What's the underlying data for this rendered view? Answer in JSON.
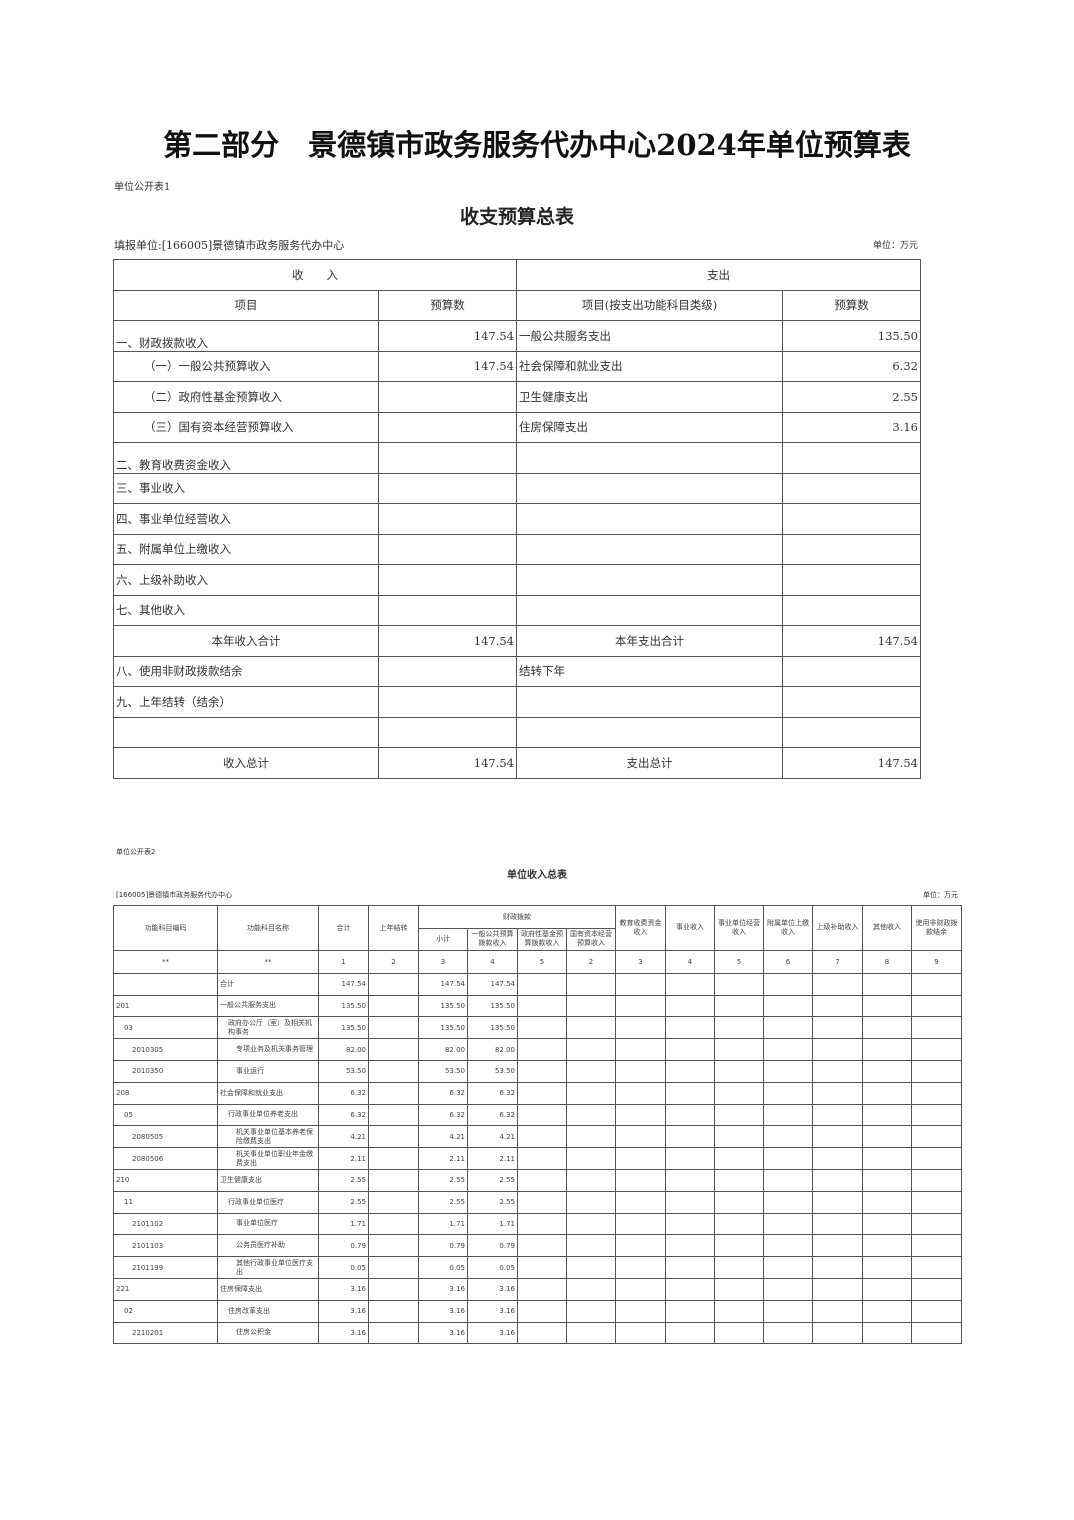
{
  "page_title": "第二部分　景德镇市政务服务代办中心2024年单位预算表",
  "table1": {
    "code": "单位公开表1",
    "title": "收支预算总表",
    "unit_label": "填报单位:[166005]景德镇市政务服务代办中心",
    "unit": "单位：万元",
    "group_income": "收　　入",
    "group_expense": "支出",
    "headers": [
      "项目",
      "预算数",
      "项目(按支出功能科目类级)",
      "预算数"
    ],
    "rows": [
      {
        "income": "一、财政拨款收入",
        "income_amt": "147.54",
        "expense": "一般公共服务支出",
        "expense_amt": "135.50"
      },
      {
        "income": "（一）一般公共预算收入",
        "income_amt": "147.54",
        "expense": "社会保障和就业支出",
        "expense_amt": "6.32"
      },
      {
        "income": "（二）政府性基金预算收入",
        "income_amt": "",
        "expense": "卫生健康支出",
        "expense_amt": "2.55"
      },
      {
        "income": "（三）国有资本经营预算收入",
        "income_amt": "",
        "expense": "住房保障支出",
        "expense_amt": "3.16"
      },
      {
        "income": "二、教育收费资金收入",
        "income_amt": "",
        "expense": "",
        "expense_amt": ""
      },
      {
        "income": "三、事业收入",
        "income_amt": "",
        "expense": "",
        "expense_amt": ""
      },
      {
        "income": "四、事业单位经营收入",
        "income_amt": "",
        "expense": "",
        "expense_amt": ""
      },
      {
        "income": "五、附属单位上缴收入",
        "income_amt": "",
        "expense": "",
        "expense_amt": ""
      },
      {
        "income": "六、上级补助收入",
        "income_amt": "",
        "expense": "",
        "expense_amt": ""
      },
      {
        "income": "七、其他收入",
        "income_amt": "",
        "expense": "",
        "expense_amt": ""
      },
      {
        "income": "本年收入合计",
        "income_amt": "147.54",
        "expense": "本年支出合计",
        "expense_amt": "147.54"
      },
      {
        "income": "八、使用非财政拨款结余",
        "income_amt": "",
        "expense": "结转下年",
        "expense_amt": ""
      },
      {
        "income": "九、上年结转（结余）",
        "income_amt": "",
        "expense": "",
        "expense_amt": ""
      },
      {
        "income": "",
        "income_amt": "",
        "expense": "",
        "expense_amt": ""
      },
      {
        "income": "收入总计",
        "income_amt": "147.54",
        "expense": "支出总计",
        "expense_amt": "147.54"
      }
    ]
  },
  "table2": {
    "code": "单位公开表2",
    "title": "单位收入总表",
    "unit_label": "[166005]景德镇市政务服务代办中心",
    "unit": "单位：万元",
    "headers": {
      "code": "功能科目编码",
      "name": "功能科目名称",
      "total": "合计",
      "carry": "上年结转",
      "fiscal": "财政拨款",
      "subtotal": "小计",
      "general": "一般公共预算拨款收入",
      "fund": "政府性基金预算拨款收入",
      "state": "国有资本经营预算收入",
      "edu": "教育收费资金收入",
      "business": "事业收入",
      "operating": "事业单位经营收入",
      "affiliated": "附属单位上缴收入",
      "subsidy": "上级补助收入",
      "other": "其他收入",
      "nonfiscal": "使用非财政拨款结余"
    },
    "index_row": [
      "**",
      "**",
      "1",
      "2",
      "3",
      "4",
      "5",
      "2",
      "3",
      "4",
      "5",
      "6",
      "7",
      "8",
      "9"
    ],
    "rows": [
      {
        "code": "",
        "name": "合计",
        "total": "147.54",
        "sub": "147.54",
        "gen": "147.54"
      },
      {
        "code": "201",
        "name": "一般公共服务支出",
        "total": "135.50",
        "sub": "135.50",
        "gen": "135.50"
      },
      {
        "code": "03",
        "name": "政府办公厅（室）及相关机构事务",
        "total": "135.50",
        "sub": "135.50",
        "gen": "135.50"
      },
      {
        "code": "2010305",
        "name": "专项业务及机关事务管理",
        "total": "82.00",
        "sub": "82.00",
        "gen": "82.00"
      },
      {
        "code": "2010350",
        "name": "事业运行",
        "total": "53.50",
        "sub": "53.50",
        "gen": "53.50"
      },
      {
        "code": "208",
        "name": "社会保障和就业支出",
        "total": "6.32",
        "sub": "6.32",
        "gen": "6.32"
      },
      {
        "code": "05",
        "name": "行政事业单位养老支出",
        "total": "6.32",
        "sub": "6.32",
        "gen": "6.32"
      },
      {
        "code": "2080505",
        "name": "机关事业单位基本养老保险缴费支出",
        "total": "4.21",
        "sub": "4.21",
        "gen": "4.21"
      },
      {
        "code": "2080506",
        "name": "机关事业单位职业年金缴费支出",
        "total": "2.11",
        "sub": "2.11",
        "gen": "2.11"
      },
      {
        "code": "210",
        "name": "卫生健康支出",
        "total": "2.55",
        "sub": "2.55",
        "gen": "2.55"
      },
      {
        "code": "11",
        "name": "行政事业单位医疗",
        "total": "2.55",
        "sub": "2.55",
        "gen": "2.55"
      },
      {
        "code": "2101102",
        "name": "事业单位医疗",
        "total": "1.71",
        "sub": "1.71",
        "gen": "1.71"
      },
      {
        "code": "2101103",
        "name": "公务员医疗补助",
        "total": "0.79",
        "sub": "0.79",
        "gen": "0.79"
      },
      {
        "code": "2101199",
        "name": "其他行政事业单位医疗支出",
        "total": "0.05",
        "sub": "0.05",
        "gen": "0.05"
      },
      {
        "code": "221",
        "name": "住房保障支出",
        "total": "3.16",
        "sub": "3.16",
        "gen": "3.16"
      },
      {
        "code": "02",
        "name": "住房改革支出",
        "total": "3.16",
        "sub": "3.16",
        "gen": "3.16"
      },
      {
        "code": "2210201",
        "name": "住房公积金",
        "total": "3.16",
        "sub": "3.16",
        "gen": "3.16"
      }
    ]
  }
}
